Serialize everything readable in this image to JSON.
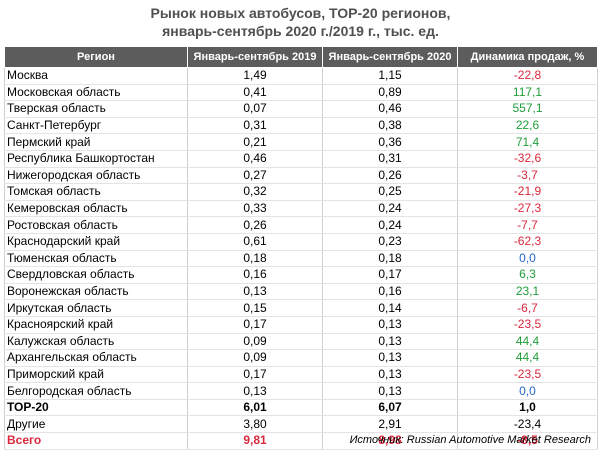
{
  "chart_data": {
    "type": "table",
    "title_line1": "Рынок новых автобусов, ТОР-20 регионов,",
    "title_line2": "январь-сентябрь 2020 г./2019 г., тыс. ед.",
    "columns": [
      "Регион",
      "Январь-сентябрь 2019",
      "Январь-сентябрь 2020",
      "Динамика продаж, %"
    ],
    "rows": [
      {
        "region": "Москва",
        "y2019": "1,49",
        "y2020": "1,15",
        "change": "-22,8",
        "sign": "neg"
      },
      {
        "region": "Московская область",
        "y2019": "0,41",
        "y2020": "0,89",
        "change": "117,1",
        "sign": "pos"
      },
      {
        "region": "Тверская область",
        "y2019": "0,07",
        "y2020": "0,46",
        "change": "557,1",
        "sign": "pos"
      },
      {
        "region": "Санкт-Петербург",
        "y2019": "0,31",
        "y2020": "0,38",
        "change": "22,6",
        "sign": "pos"
      },
      {
        "region": "Пермский край",
        "y2019": "0,21",
        "y2020": "0,36",
        "change": "71,4",
        "sign": "pos"
      },
      {
        "region": "Республика Башкортостан",
        "y2019": "0,46",
        "y2020": "0,31",
        "change": "-32,6",
        "sign": "neg"
      },
      {
        "region": "Нижегородская область",
        "y2019": "0,27",
        "y2020": "0,26",
        "change": "-3,7",
        "sign": "neg"
      },
      {
        "region": "Томская область",
        "y2019": "0,32",
        "y2020": "0,25",
        "change": "-21,9",
        "sign": "neg"
      },
      {
        "region": "Кемеровская область",
        "y2019": "0,33",
        "y2020": "0,24",
        "change": "-27,3",
        "sign": "neg"
      },
      {
        "region": "Ростовская область",
        "y2019": "0,26",
        "y2020": "0,24",
        "change": "-7,7",
        "sign": "neg"
      },
      {
        "region": "Краснодарский край",
        "y2019": "0,61",
        "y2020": "0,23",
        "change": "-62,3",
        "sign": "neg"
      },
      {
        "region": "Тюменская область",
        "y2019": "0,18",
        "y2020": "0,18",
        "change": "0,0",
        "sign": "zero"
      },
      {
        "region": "Свердловская область",
        "y2019": "0,16",
        "y2020": "0,17",
        "change": "6,3",
        "sign": "pos"
      },
      {
        "region": "Воронежская область",
        "y2019": "0,13",
        "y2020": "0,16",
        "change": "23,1",
        "sign": "pos"
      },
      {
        "region": "Иркутская область",
        "y2019": "0,15",
        "y2020": "0,14",
        "change": "-6,7",
        "sign": "neg"
      },
      {
        "region": "Красноярский край",
        "y2019": "0,17",
        "y2020": "0,13",
        "change": "-23,5",
        "sign": "neg"
      },
      {
        "region": "Калужская область",
        "y2019": "0,09",
        "y2020": "0,13",
        "change": "44,4",
        "sign": "pos"
      },
      {
        "region": "Архангельская область",
        "y2019": "0,09",
        "y2020": "0,13",
        "change": "44,4",
        "sign": "pos"
      },
      {
        "region": "Приморский край",
        "y2019": "0,17",
        "y2020": "0,13",
        "change": "-23,5",
        "sign": "neg"
      },
      {
        "region": "Белгородская область",
        "y2019": "0,13",
        "y2020": "0,13",
        "change": "0,0",
        "sign": "zero"
      }
    ],
    "summary": [
      {
        "region": "ТОР-20",
        "y2019": "6,01",
        "y2020": "6,07",
        "change": "1,0",
        "kind": "top20"
      },
      {
        "region": "Другие",
        "y2019": "3,80",
        "y2020": "2,91",
        "change": "-23,4",
        "kind": "other"
      },
      {
        "region": "Всего",
        "y2019": "9,81",
        "y2020": "8,98",
        "change": "-8,5",
        "kind": "total"
      }
    ],
    "colors": {
      "header_bg": "#5c5c5c",
      "positive": "#1f9e3a",
      "negative": "#d9283c",
      "zero": "#2467c7",
      "total": "#d9283c"
    }
  },
  "source": "Источник: Russian Automotive Market Research"
}
